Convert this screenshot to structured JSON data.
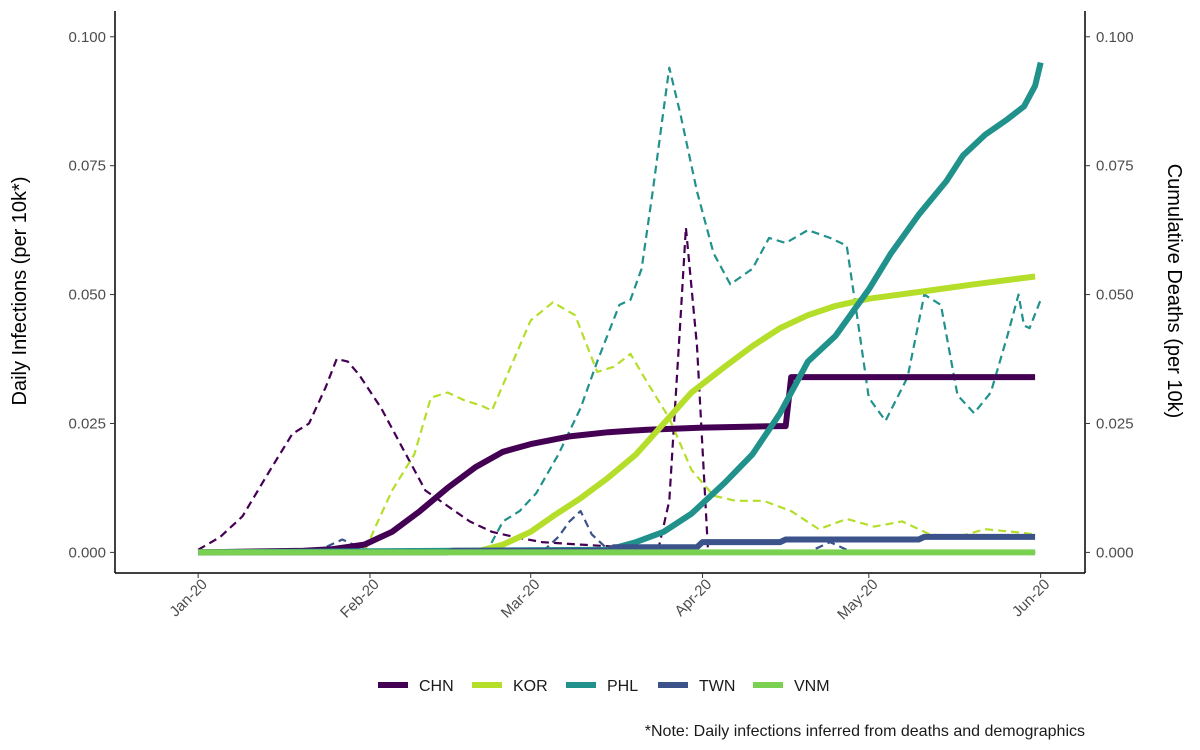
{
  "chart_data": {
    "type": "line",
    "ylabel": "Daily Infections (per 10k*)",
    "y2label": "Cumulative Deaths (per 10k)",
    "caption": "*Note: Daily infections inferred from deaths and demographics",
    "ylim": [
      -0.004,
      0.105
    ],
    "y_ticks": [
      0.0,
      0.025,
      0.05,
      0.075,
      0.1
    ],
    "y_tick_labels": [
      "0.000",
      "0.025",
      "0.050",
      "0.075",
      "0.100"
    ],
    "x_ticks": [
      "2020-01-01",
      "2020-02-01",
      "2020-03-01",
      "2020-04-01",
      "2020-05-01",
      "2020-06-01"
    ],
    "x_tick_labels": [
      "Jan-20",
      "Feb-20",
      "Mar-20",
      "Apr-20",
      "May-20",
      "Jun-20"
    ],
    "xlim": [
      "2019-12-17",
      "2020-06-09"
    ],
    "grid": false,
    "legend_position": "bottom",
    "series_style": {
      "cumulative_deaths": "solid",
      "daily_infections": "dashed"
    },
    "series": [
      {
        "name": "CHN",
        "color": "#440154",
        "cumulative_deaths": [
          [
            "2020-01-01",
            0
          ],
          [
            "2020-01-20",
            0.0003
          ],
          [
            "2020-01-25",
            0.0006
          ],
          [
            "2020-01-31",
            0.0015
          ],
          [
            "2020-02-05",
            0.004
          ],
          [
            "2020-02-10",
            0.008
          ],
          [
            "2020-02-15",
            0.0125
          ],
          [
            "2020-02-20",
            0.0165
          ],
          [
            "2020-02-25",
            0.0195
          ],
          [
            "2020-03-01",
            0.021
          ],
          [
            "2020-03-08",
            0.0225
          ],
          [
            "2020-03-15",
            0.0233
          ],
          [
            "2020-03-22",
            0.0238
          ],
          [
            "2020-04-01",
            0.0242
          ],
          [
            "2020-04-10",
            0.0244
          ],
          [
            "2020-04-15",
            0.0245
          ],
          [
            "2020-04-16",
            0.0245
          ],
          [
            "2020-04-17",
            0.034
          ],
          [
            "2020-05-01",
            0.034
          ],
          [
            "2020-05-31",
            0.034
          ]
        ],
        "daily_infections": [
          [
            "2020-01-01",
            0.0005
          ],
          [
            "2020-01-05",
            0.003
          ],
          [
            "2020-01-09",
            0.007
          ],
          [
            "2020-01-14",
            0.016
          ],
          [
            "2020-01-18",
            0.023
          ],
          [
            "2020-01-21",
            0.025
          ],
          [
            "2020-01-24",
            0.032
          ],
          [
            "2020-01-26",
            0.0375
          ],
          [
            "2020-01-28",
            0.037
          ],
          [
            "2020-01-30",
            0.0345
          ],
          [
            "2020-02-03",
            0.028
          ],
          [
            "2020-02-07",
            0.02
          ],
          [
            "2020-02-11",
            0.012
          ],
          [
            "2020-02-15",
            0.009
          ],
          [
            "2020-02-19",
            0.006
          ],
          [
            "2020-02-23",
            0.004
          ],
          [
            "2020-02-27",
            0.003
          ],
          [
            "2020-03-03",
            0.002
          ],
          [
            "2020-03-10",
            0.0015
          ],
          [
            "2020-03-18",
            0.001
          ],
          [
            "2020-03-24",
            0.0005
          ],
          [
            "2020-03-26",
            0.01
          ],
          [
            "2020-03-28",
            0.045
          ],
          [
            "2020-03-29",
            0.063
          ],
          [
            "2020-03-31",
            0.04
          ],
          [
            "2020-04-02",
            0.0
          ],
          [
            "2020-05-31",
            0.0
          ]
        ]
      },
      {
        "name": "KOR",
        "color": "#B5DE2B",
        "cumulative_deaths": [
          [
            "2020-01-01",
            0
          ],
          [
            "2020-02-20",
            0.0001
          ],
          [
            "2020-02-25",
            0.0015
          ],
          [
            "2020-03-01",
            0.004
          ],
          [
            "2020-03-05",
            0.007
          ],
          [
            "2020-03-10",
            0.0105
          ],
          [
            "2020-03-15",
            0.0145
          ],
          [
            "2020-03-20",
            0.019
          ],
          [
            "2020-03-25",
            0.025
          ],
          [
            "2020-03-30",
            0.031
          ],
          [
            "2020-04-05",
            0.036
          ],
          [
            "2020-04-10",
            0.04
          ],
          [
            "2020-04-15",
            0.0435
          ],
          [
            "2020-04-20",
            0.046
          ],
          [
            "2020-04-25",
            0.0478
          ],
          [
            "2020-05-01",
            0.0492
          ],
          [
            "2020-05-10",
            0.0505
          ],
          [
            "2020-05-20",
            0.052
          ],
          [
            "2020-05-31",
            0.0535
          ]
        ],
        "daily_infections": [
          [
            "2020-01-01",
            0
          ],
          [
            "2020-01-31",
            0.0
          ],
          [
            "2020-02-02",
            0.005
          ],
          [
            "2020-02-05",
            0.012
          ],
          [
            "2020-02-09",
            0.019
          ],
          [
            "2020-02-12",
            0.03
          ],
          [
            "2020-02-15",
            0.031
          ],
          [
            "2020-02-18",
            0.0295
          ],
          [
            "2020-02-21",
            0.0285
          ],
          [
            "2020-02-23",
            0.0275
          ],
          [
            "2020-02-26",
            0.035
          ],
          [
            "2020-03-01",
            0.045
          ],
          [
            "2020-03-05",
            0.0485
          ],
          [
            "2020-03-09",
            0.046
          ],
          [
            "2020-03-13",
            0.035
          ],
          [
            "2020-03-16",
            0.036
          ],
          [
            "2020-03-19",
            0.0385
          ],
          [
            "2020-03-22",
            0.033
          ],
          [
            "2020-03-26",
            0.026
          ],
          [
            "2020-03-30",
            0.016
          ],
          [
            "2020-04-03",
            0.011
          ],
          [
            "2020-04-07",
            0.01
          ],
          [
            "2020-04-12",
            0.01
          ],
          [
            "2020-04-17",
            0.008
          ],
          [
            "2020-04-22",
            0.0045
          ],
          [
            "2020-04-27",
            0.0065
          ],
          [
            "2020-05-02",
            0.005
          ],
          [
            "2020-05-07",
            0.006
          ],
          [
            "2020-05-12",
            0.0035
          ],
          [
            "2020-05-17",
            0.003
          ],
          [
            "2020-05-22",
            0.0045
          ],
          [
            "2020-05-27",
            0.004
          ],
          [
            "2020-05-31",
            0.0035
          ]
        ]
      },
      {
        "name": "PHL",
        "color": "#21918C",
        "cumulative_deaths": [
          [
            "2020-01-01",
            0
          ],
          [
            "2020-03-15",
            0.0005
          ],
          [
            "2020-03-20",
            0.002
          ],
          [
            "2020-03-25",
            0.004
          ],
          [
            "2020-03-30",
            0.0075
          ],
          [
            "2020-04-05",
            0.0135
          ],
          [
            "2020-04-10",
            0.019
          ],
          [
            "2020-04-15",
            0.027
          ],
          [
            "2020-04-20",
            0.037
          ],
          [
            "2020-04-25",
            0.042
          ],
          [
            "2020-05-01",
            0.051
          ],
          [
            "2020-05-05",
            0.058
          ],
          [
            "2020-05-10",
            0.0655
          ],
          [
            "2020-05-15",
            0.072
          ],
          [
            "2020-05-18",
            0.077
          ],
          [
            "2020-05-22",
            0.081
          ],
          [
            "2020-05-26",
            0.084
          ],
          [
            "2020-05-29",
            0.0865
          ],
          [
            "2020-05-31",
            0.0905
          ],
          [
            "2020-06-01",
            0.095
          ]
        ],
        "daily_infections": [
          [
            "2020-01-01",
            0
          ],
          [
            "2020-02-22",
            0.0
          ],
          [
            "2020-02-25",
            0.006
          ],
          [
            "2020-02-28",
            0.008
          ],
          [
            "2020-03-02",
            0.0115
          ],
          [
            "2020-03-06",
            0.019
          ],
          [
            "2020-03-10",
            0.028
          ],
          [
            "2020-03-13",
            0.037
          ],
          [
            "2020-03-17",
            0.048
          ],
          [
            "2020-03-19",
            0.049
          ],
          [
            "2020-03-21",
            0.055
          ],
          [
            "2020-03-23",
            0.07
          ],
          [
            "2020-03-25",
            0.086
          ],
          [
            "2020-03-26",
            0.094
          ],
          [
            "2020-03-28",
            0.085
          ],
          [
            "2020-03-31",
            0.07
          ],
          [
            "2020-04-03",
            0.058
          ],
          [
            "2020-04-06",
            0.052
          ],
          [
            "2020-04-10",
            0.055
          ],
          [
            "2020-04-13",
            0.061
          ],
          [
            "2020-04-16",
            0.06
          ],
          [
            "2020-04-20",
            0.0625
          ],
          [
            "2020-04-24",
            0.061
          ],
          [
            "2020-04-27",
            0.0595
          ],
          [
            "2020-04-29",
            0.045
          ],
          [
            "2020-05-01",
            0.03
          ],
          [
            "2020-05-04",
            0.0255
          ],
          [
            "2020-05-08",
            0.034
          ],
          [
            "2020-05-11",
            0.05
          ],
          [
            "2020-05-14",
            0.048
          ],
          [
            "2020-05-17",
            0.0305
          ],
          [
            "2020-05-20",
            0.027
          ],
          [
            "2020-05-23",
            0.031
          ],
          [
            "2020-05-26",
            0.042
          ],
          [
            "2020-05-28",
            0.05
          ],
          [
            "2020-05-29",
            0.044
          ],
          [
            "2020-05-30",
            0.0435
          ],
          [
            "2020-06-01",
            0.049
          ]
        ]
      },
      {
        "name": "TWN",
        "color": "#3B528B",
        "cumulative_deaths": [
          [
            "2020-01-01",
            0
          ],
          [
            "2020-02-15",
            0.0
          ],
          [
            "2020-02-16",
            0.0003
          ],
          [
            "2020-03-15",
            0.0003
          ],
          [
            "2020-03-16",
            0.001
          ],
          [
            "2020-03-31",
            0.001
          ],
          [
            "2020-04-01",
            0.002
          ],
          [
            "2020-04-15",
            0.002
          ],
          [
            "2020-04-16",
            0.0025
          ],
          [
            "2020-05-10",
            0.0025
          ],
          [
            "2020-05-11",
            0.003
          ],
          [
            "2020-05-31",
            0.003
          ]
        ],
        "daily_infections": [
          [
            "2020-01-01",
            0
          ],
          [
            "2020-01-22",
            0.0
          ],
          [
            "2020-01-27",
            0.0025
          ],
          [
            "2020-02-01",
            0.0
          ],
          [
            "2020-03-03",
            0.0
          ],
          [
            "2020-03-06",
            0.003
          ],
          [
            "2020-03-08",
            0.006
          ],
          [
            "2020-03-10",
            0.008
          ],
          [
            "2020-03-12",
            0.0035
          ],
          [
            "2020-03-15",
            0.0005
          ],
          [
            "2020-04-20",
            0.0
          ],
          [
            "2020-04-24",
            0.002
          ],
          [
            "2020-04-28",
            0.0
          ],
          [
            "2020-05-31",
            0.0
          ]
        ]
      },
      {
        "name": "VNM",
        "color": "#7AD151",
        "cumulative_deaths": [
          [
            "2020-01-01",
            0
          ],
          [
            "2020-05-31",
            0
          ]
        ],
        "daily_infections": [
          [
            "2020-01-01",
            0
          ],
          [
            "2020-05-31",
            0
          ]
        ]
      }
    ]
  }
}
